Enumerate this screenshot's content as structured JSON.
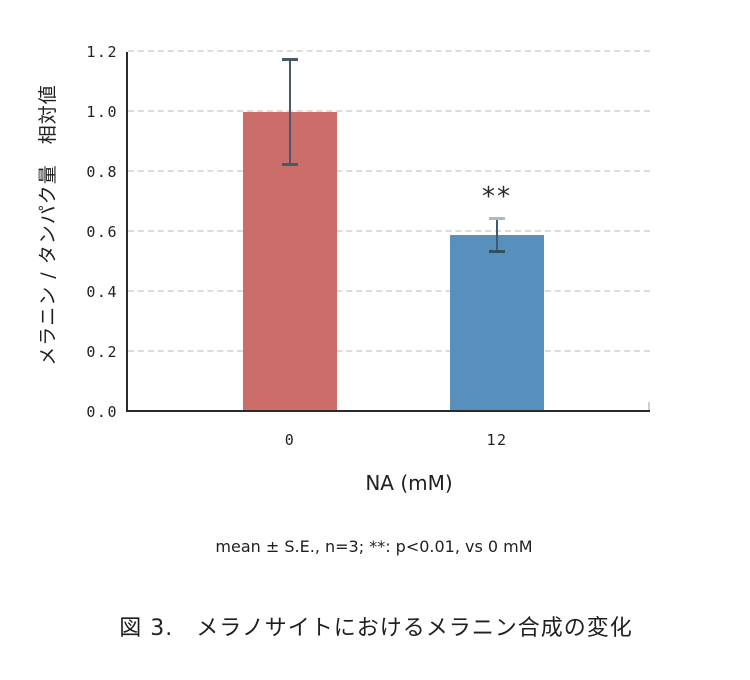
{
  "chart_data": {
    "type": "bar",
    "categories": [
      "0",
      "12"
    ],
    "values": [
      1.0,
      0.59
    ],
    "errors": [
      0.18,
      0.06
    ],
    "significance": [
      "",
      "**"
    ],
    "bar_colors": [
      "#CB6E6A",
      "#5890BD"
    ],
    "xlabel": "NA (mM)",
    "ylabel": "メラニン / タンパク量　相対値",
    "yticks": [
      0.0,
      0.2,
      0.4,
      0.6,
      0.8,
      1.0,
      1.2
    ],
    "ylim": [
      0.0,
      1.2
    ],
    "grid": "horizontal-dashed",
    "legend": "none",
    "title": ""
  },
  "figure": {
    "note": "mean ± S.E., n=3; **: p<0.01, vs 0 mM",
    "caption": "図 3.　メラノサイトにおけるメラニン合成の変化"
  },
  "colors": {
    "background": "#FFFFFF",
    "axis": "#2B2B2B",
    "gridline": "#DCDCDC",
    "text": "#1F1F1F",
    "error_bar_red": "#47596A",
    "error_bar_blue": "#3D5B72",
    "error_cap_light": "#A9BAC4",
    "error_cap_dark": "#315061"
  }
}
